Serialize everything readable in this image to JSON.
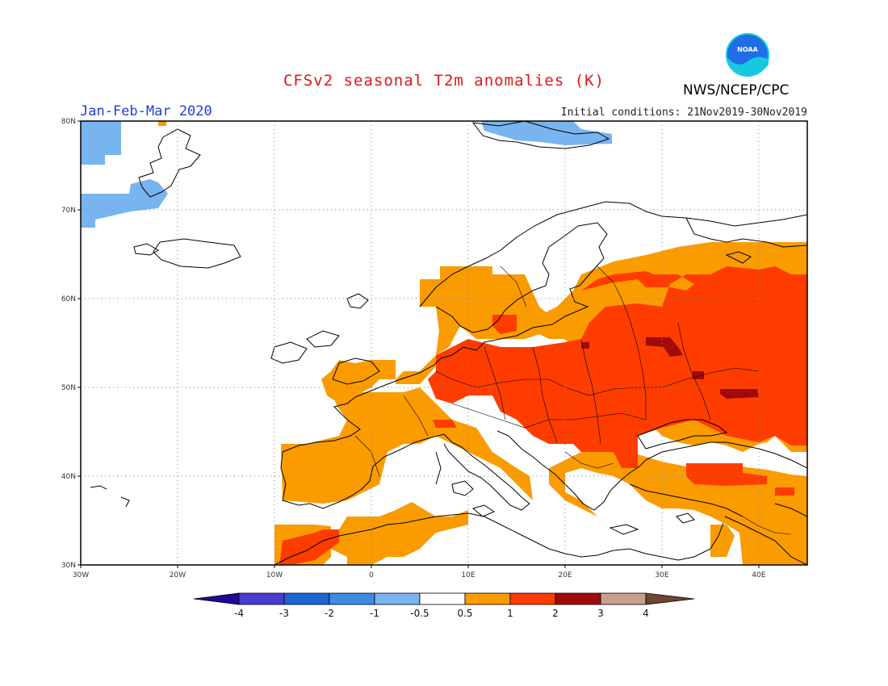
{
  "header": {
    "title": "CFSv2 seasonal T2m anomalies (K)",
    "period": "Jan-Feb-Mar 2020",
    "initial_conditions": "Initial conditions: 21Nov2019-30Nov2019",
    "org": "NWS/NCEP/CPC",
    "logo_text": "NOAA"
  },
  "map": {
    "region": "Europe",
    "lon_range": [
      -30,
      45
    ],
    "lat_range": [
      30,
      80
    ],
    "lat_labels": [
      "80N",
      "70N",
      "60N",
      "50N",
      "40N",
      "30N"
    ],
    "lon_labels": [
      "30W",
      "20W",
      "10W",
      "0",
      "10E",
      "20E",
      "30E",
      "40E"
    ],
    "grid": "dotted"
  },
  "colorbar": {
    "labels": [
      "-4",
      "-3",
      "-2",
      "-1",
      "-0.5",
      "0.5",
      "1",
      "2",
      "3",
      "4"
    ],
    "colors": [
      "#1e0a96",
      "#4a3cd0",
      "#1e64d2",
      "#3c8ce6",
      "#78b4f0",
      "#ffffff",
      "#fa9b00",
      "#ff3c00",
      "#a00a0a",
      "#c8a090",
      "#6e4632"
    ]
  }
}
